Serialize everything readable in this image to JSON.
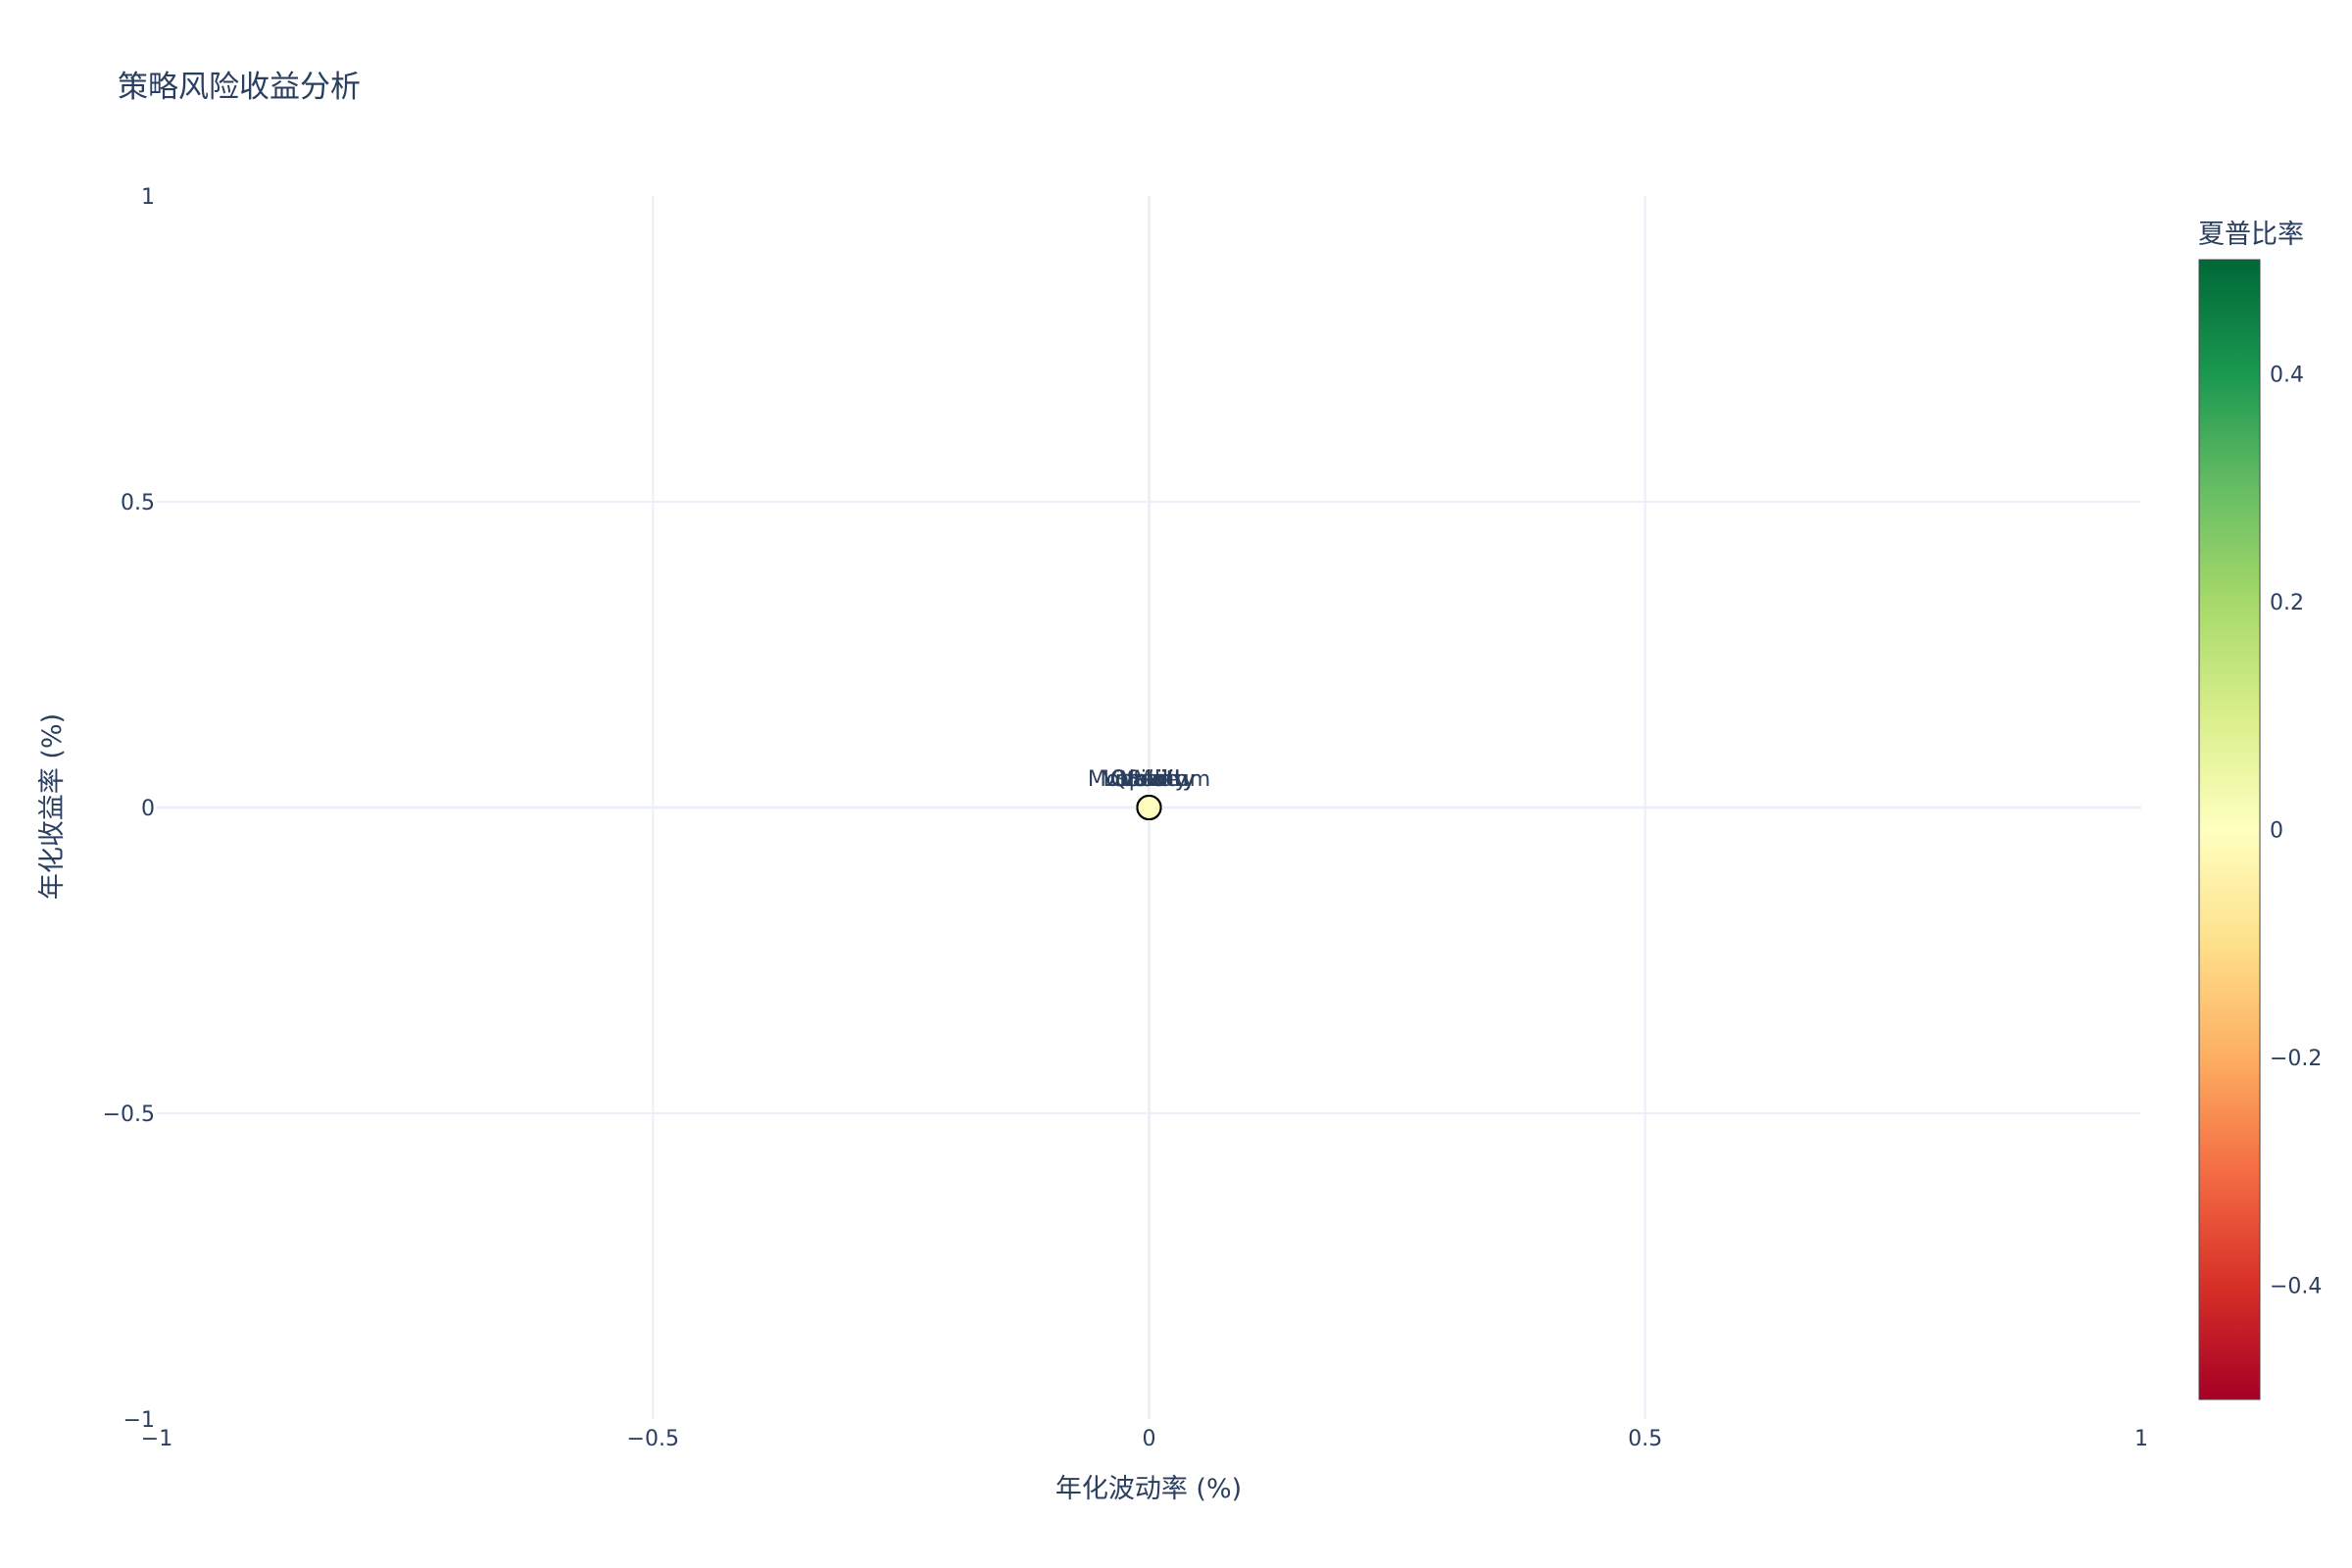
{
  "chart_data": {
    "type": "scatter",
    "title": "策略风险收益分析",
    "xlabel": "年化波动率 (%)",
    "ylabel": "年化收益率 (%)",
    "xlim": [
      -1,
      1
    ],
    "ylim": [
      -1,
      1
    ],
    "x_ticks": [
      -1,
      -0.5,
      0,
      0.5,
      1
    ],
    "y_ticks": [
      -1,
      -0.5,
      0,
      0.5,
      1
    ],
    "x_tick_labels": [
      "−1",
      "−0.5",
      "0",
      "0.5",
      "1"
    ],
    "y_tick_labels": [
      "−1",
      "−0.5",
      "0",
      "0.5",
      "1"
    ],
    "grid": true,
    "points": [
      {
        "x": 0,
        "y": 0,
        "sharpe": 0,
        "label": "Mo"
      },
      {
        "x": 0,
        "y": 0,
        "sharpe": 0,
        "label": "Momentum"
      },
      {
        "x": 0,
        "y": 0,
        "sharpe": 0,
        "label": "Value"
      },
      {
        "x": 0,
        "y": 0,
        "sharpe": 0,
        "label": "Quality"
      },
      {
        "x": 0,
        "y": 0,
        "sharpe": 0,
        "label": "Volatility"
      },
      {
        "x": 0,
        "y": 0,
        "sharpe": 0,
        "label": "Growth"
      },
      {
        "x": 0,
        "y": 0,
        "sharpe": 0,
        "label": "Size"
      },
      {
        "x": 0,
        "y": 0,
        "sharpe": 0,
        "label": "Liquidity"
      }
    ],
    "colorbar": {
      "title": "夏普比率",
      "range": [
        -0.5,
        0.5
      ],
      "ticks": [
        0.4,
        0.2,
        0,
        -0.2,
        -0.4
      ],
      "tick_labels": [
        "0.4",
        "0.2",
        "0",
        "−0.2",
        "−0.4"
      ],
      "colors": [
        "#a50026",
        "#d73027",
        "#f46d43",
        "#fdae61",
        "#fee08b",
        "#ffffbf",
        "#d9ef8b",
        "#a6d96a",
        "#66bd63",
        "#1a9850",
        "#006837"
      ]
    },
    "marker_color": "#fefdbe"
  }
}
